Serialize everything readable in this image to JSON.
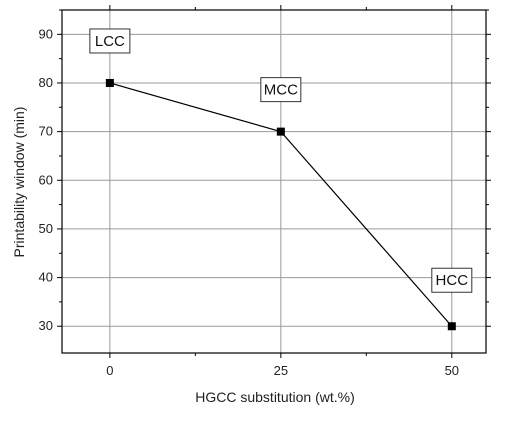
{
  "chart_data": {
    "type": "line",
    "title": "",
    "xlabel": "HGCC substitution (wt.%)",
    "ylabel": "Printability window (min)",
    "xlim": [
      -7,
      55
    ],
    "ylim": [
      24.5,
      95
    ],
    "xticks": [
      0,
      25,
      50
    ],
    "yticks": [
      30,
      40,
      50,
      60,
      70,
      80,
      90
    ],
    "grid": true,
    "series": [
      {
        "x": [
          0,
          25,
          50
        ],
        "y": [
          80,
          70,
          30
        ],
        "marker": "square",
        "color": "#000000"
      }
    ],
    "annotations": [
      {
        "text": "LCC",
        "x": 0,
        "y": 80
      },
      {
        "text": "MCC",
        "x": 25,
        "y": 70
      },
      {
        "text": "HCC",
        "x": 50,
        "y": 30
      }
    ]
  }
}
